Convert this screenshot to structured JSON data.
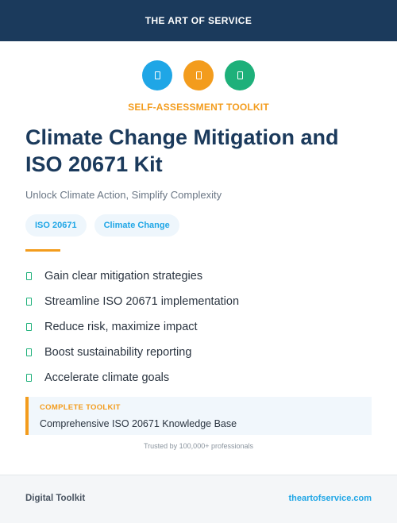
{
  "header": {
    "brand": "THE ART OF SERVICE"
  },
  "icons": [
    {
      "name": "shield-icon",
      "color": "#1fa6e6"
    },
    {
      "name": "chart-icon",
      "color": "#f39c1d"
    },
    {
      "name": "check-icon",
      "color": "#1eb07a"
    }
  ],
  "hero": {
    "kicker": "SELF-ASSESSMENT TOOLKIT",
    "title": "Climate Change Mitigation and ISO 20671 Kit",
    "subtitle": "Unlock Climate Action, Simplify Complexity"
  },
  "tags": [
    "ISO 20671",
    "Climate Change"
  ],
  "features": [
    "Gain clear mitigation strategies",
    "Streamline ISO 20671 implementation",
    "Reduce risk, maximize impact",
    "Boost sustainability reporting",
    "Accelerate climate goals"
  ],
  "toolkit": {
    "label": "COMPLETE TOOLKIT",
    "value": "Comprehensive ISO 20671 Knowledge Base"
  },
  "trusted": "Trusted by 100,000+ professionals",
  "footer": {
    "left": "Digital Toolkit",
    "right": "theartofservice.com"
  },
  "colors": {
    "navy": "#1b3a5c",
    "accent": "#f39c1d",
    "blue": "#1fa6e6",
    "green": "#1eb07a"
  }
}
